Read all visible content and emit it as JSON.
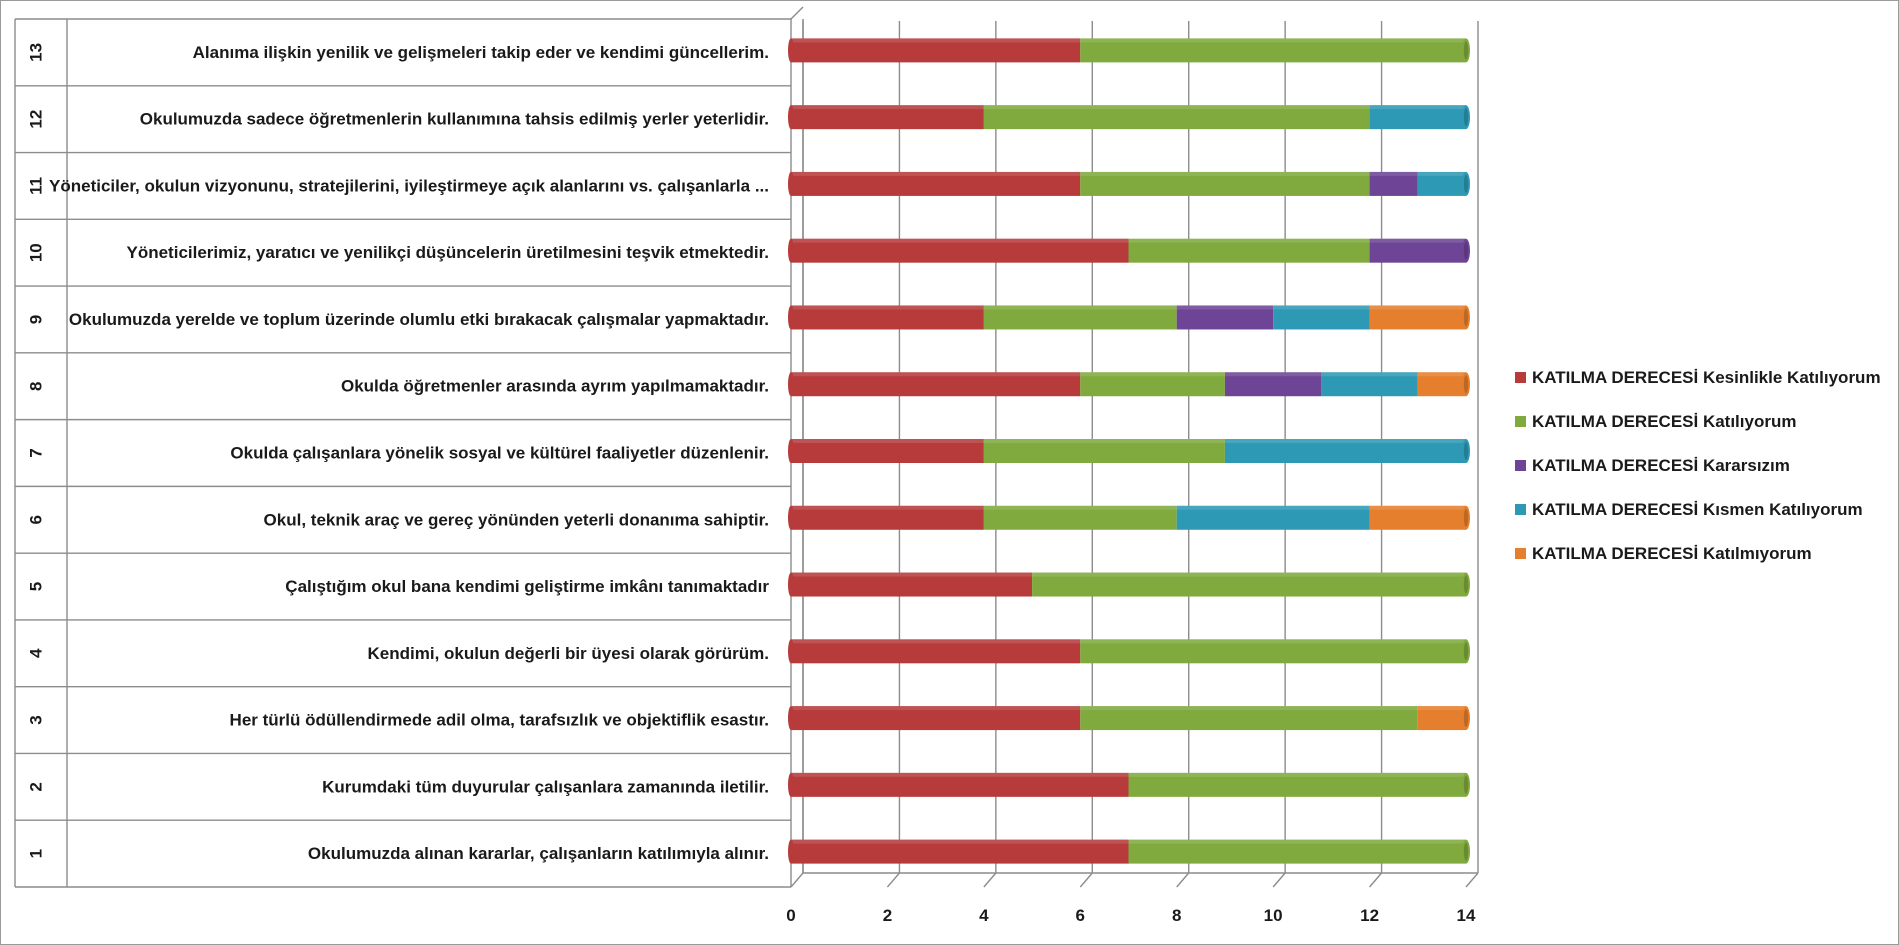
{
  "colors": {
    "KATILMA DERECESİ  Kesinlikle  Katılıyorum": "#b73b3b",
    "KATILMA DERECESİ  Katılıyorum": "#80aa3e",
    "KATILMA DERECESİ  Kararsızım": "#6e4596",
    "KATILMA DERECESİ  Kısmen Katılıyorum": "#2e99b4",
    "KATILMA DERECESİ  Katılmıyorum": "#e57f2d"
  },
  "chart_data": {
    "type": "bar",
    "orientation": "horizontal",
    "stacked": true,
    "grid": true,
    "legend_position": "right",
    "xlim": [
      0,
      14
    ],
    "x_ticks": [
      "0",
      "2",
      "4",
      "6",
      "8",
      "10",
      "12",
      "14"
    ],
    "categories": [
      "1",
      "2",
      "3",
      "4",
      "5",
      "6",
      "7",
      "8",
      "9",
      "10",
      "11",
      "12",
      "13"
    ],
    "category_labels": [
      "Okulumuzda alınan kararlar, çalışanların  katılımıyla alınır.",
      "Kurumdaki tüm duyurular çalışanlara zamanında iletilir.",
      "Her türlü ödüllendirmede adil olma, tarafsızlık ve objektiflik esastır.",
      "Kendimi, okulun değerli bir üyesi olarak görürüm.",
      "Çalıştığım okul bana kendimi geliştirme imkânı tanımaktadır",
      "Okul, teknik araç ve gereç yönünden yeterli donanıma sahiptir.",
      "Okulda çalışanlara  yönelik sosyal ve kültürel faaliyetler düzenlenir.",
      "Okulda öğretmenler arasında ayrım yapılmamaktadır.",
      "Okulumuzda yerelde ve toplum üzerinde olumlu etki bırakacak çalışmalar  yapmaktadır.",
      "Yöneticilerimiz, yaratıcı ve yenilikçi düşüncelerin üretilmesini teşvik etmektedir.",
      "Yöneticiler, okulun vizyonunu,  stratejilerini, iyileştirmeye açık alanlarını vs. çalışanlarla ...",
      "Okulumuzda sadece öğretmenlerin kullanımına tahsis edilmiş yerler yeterlidir.",
      "Alanıma ilişkin yenilik ve gelişmeleri takip eder ve kendimi güncellerim."
    ],
    "series": [
      {
        "name": "KATILMA DERECESİ  Kesinlikle  Katılıyorum",
        "values": [
          7,
          7,
          6,
          6,
          5,
          4,
          4,
          6,
          4,
          7,
          6,
          4,
          6
        ]
      },
      {
        "name": "KATILMA DERECESİ  Katılıyorum",
        "values": [
          7,
          7,
          7,
          8,
          9,
          4,
          5,
          3,
          4,
          5,
          6,
          8,
          8
        ]
      },
      {
        "name": "KATILMA DERECESİ  Kararsızım",
        "values": [
          0,
          0,
          0,
          0,
          0,
          0,
          0,
          2,
          2,
          2,
          1,
          0,
          0
        ]
      },
      {
        "name": "KATILMA DERECESİ  Kısmen Katılıyorum",
        "values": [
          0,
          0,
          0,
          0,
          0,
          4,
          5,
          2,
          2,
          0,
          1,
          2,
          0
        ]
      },
      {
        "name": "KATILMA DERECESİ  Katılmıyorum",
        "values": [
          0,
          0,
          1,
          0,
          0,
          2,
          0,
          1,
          2,
          0,
          0,
          0,
          0
        ]
      }
    ]
  }
}
